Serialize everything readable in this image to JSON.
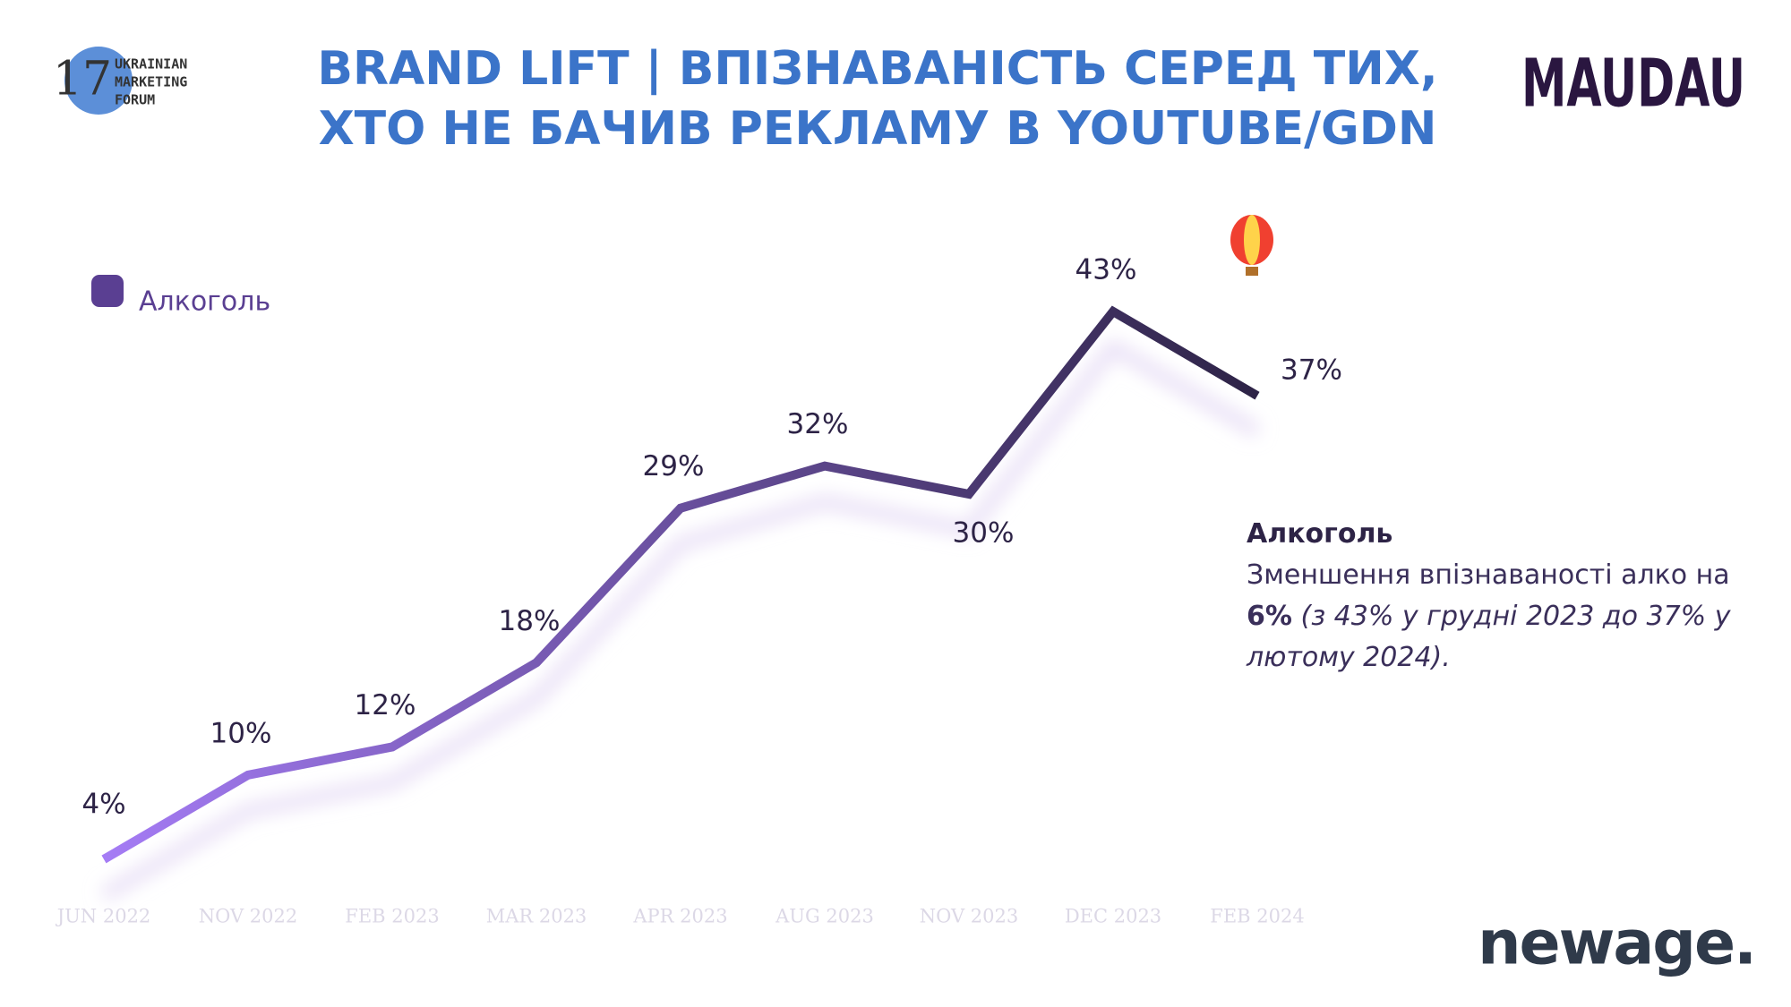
{
  "chart_data": {
    "type": "line",
    "title": "BRAND LIFT | ВПІЗНАВАНІСТЬ СЕРЕД ТИХ,",
    "subtitle": "ХТО НЕ БАЧИВ РЕКЛАМУ В YOUTUBE/GDN",
    "categories": [
      "JUN 2022",
      "NOV 2022",
      "FEB 2023",
      "MAR 2023",
      "APR 2023",
      "AUG 2023",
      "NOV 2023",
      "DEC 2023",
      "FEB 2024"
    ],
    "series": [
      {
        "name": "Алкоголь",
        "color": "#5a3f92",
        "gradient": [
          "#a57cf5",
          "#2d2346"
        ],
        "values": [
          4,
          10,
          12,
          18,
          29,
          32,
          30,
          43,
          37
        ],
        "value_labels": [
          "4%",
          "10%",
          "12%",
          "18%",
          "29%",
          "32%",
          "30%",
          "43%",
          "37%"
        ]
      }
    ],
    "legend": "top-left",
    "annotation": {
      "title": "Алкоголь",
      "text": "Зменшення впізнаваності алко на",
      "highlight": "6%",
      "note": "(з 43% у грудні 2023 до 37% у лютому 2024)."
    }
  },
  "logos": {
    "forum_number": "17",
    "forum_name": [
      "UKRAINIAN",
      "MARKETING",
      "FORUM"
    ],
    "brand": "MAUDAU",
    "agency": "newage."
  }
}
